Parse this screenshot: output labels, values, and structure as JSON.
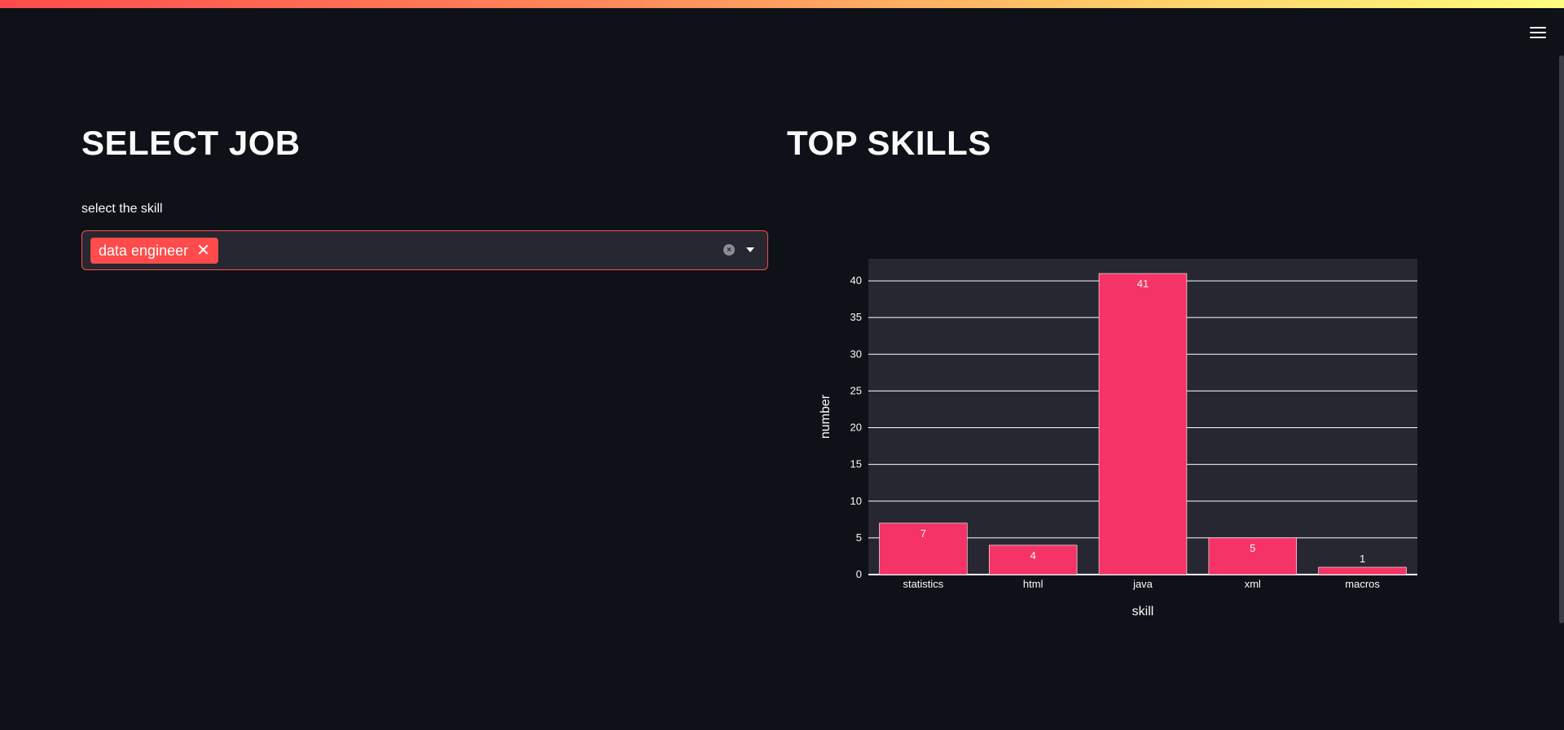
{
  "page": {
    "left_heading": "SELECT JOB",
    "right_heading": "TOP SKILLS"
  },
  "multiselect": {
    "label": "select the skill",
    "selected": [
      "data engineer"
    ],
    "tag_remove_glyph": "✕",
    "clear_icon": "clear-icon",
    "dropdown_icon": "chevron-down-icon"
  },
  "menu": {
    "icon": "hamburger-menu-icon"
  },
  "colors": {
    "accent": "#ff4b4b",
    "bar": "#f63366",
    "background": "#0e1117",
    "plot_background": "#262730"
  },
  "chart_data": {
    "type": "bar",
    "categories": [
      "statistics",
      "html",
      "java",
      "xml",
      "macros"
    ],
    "values": [
      7,
      4,
      41,
      5,
      1
    ],
    "title": "",
    "xlabel": "skill",
    "ylabel": "number",
    "ylim": [
      0,
      43
    ],
    "yticks": [
      0,
      5,
      10,
      15,
      20,
      25,
      30,
      35,
      40
    ],
    "grid": true,
    "show_value_labels": true
  }
}
